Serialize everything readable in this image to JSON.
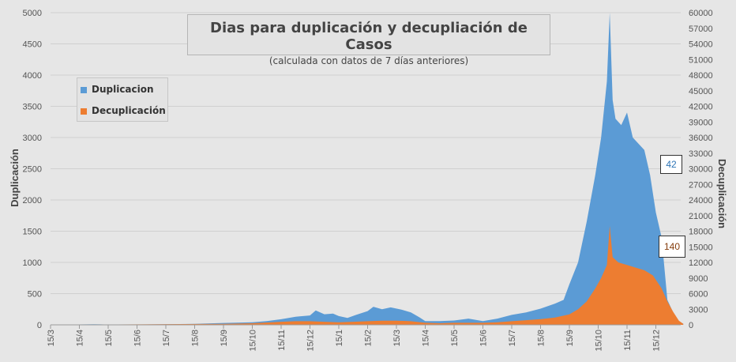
{
  "chart_data": {
    "type": "area",
    "title": "Dias para duplicación y decupliación de Casos",
    "subtitle": "(calculada con datos de 7 días anteriores)",
    "ylabel": "Duplicación",
    "y2label": "Decuplicación",
    "ylim": [
      0,
      5000
    ],
    "y2lim": [
      0,
      60000
    ],
    "yticks": [
      0,
      500,
      1000,
      1500,
      2000,
      2500,
      3000,
      3500,
      4000,
      4500,
      5000
    ],
    "y2ticks": [
      0,
      3000,
      6000,
      9000,
      12000,
      15000,
      18000,
      21000,
      24000,
      27000,
      30000,
      33000,
      36000,
      39000,
      42000,
      45000,
      48000,
      51000,
      54000,
      57000,
      60000
    ],
    "x_tick_labels": [
      "15/3",
      "15/4",
      "15/5",
      "15/6",
      "15/7",
      "15/8",
      "15/9",
      "15/10",
      "15/11",
      "15/12",
      "15/1",
      "15/2",
      "15/3",
      "15/4",
      "15/5",
      "15/6",
      "15/7",
      "15/8",
      "15/9",
      "15/10",
      "15/11",
      "15/12"
    ],
    "x_unit": "months since 15/3 (tick index)",
    "series": [
      {
        "name": "Duplicacion",
        "axis": "left",
        "color": "#5b9bd5",
        "points": [
          [
            0.0,
            0
          ],
          [
            0.7,
            5
          ],
          [
            1.5,
            10
          ],
          [
            2.0,
            5
          ],
          [
            3.0,
            5
          ],
          [
            4.0,
            10
          ],
          [
            5.0,
            15
          ],
          [
            6.0,
            30
          ],
          [
            7.0,
            40
          ],
          [
            7.5,
            60
          ],
          [
            8.0,
            90
          ],
          [
            8.5,
            130
          ],
          [
            9.0,
            150
          ],
          [
            9.2,
            230
          ],
          [
            9.5,
            170
          ],
          [
            9.8,
            180
          ],
          [
            10.0,
            140
          ],
          [
            10.3,
            110
          ],
          [
            10.6,
            160
          ],
          [
            11.0,
            220
          ],
          [
            11.2,
            290
          ],
          [
            11.5,
            250
          ],
          [
            11.8,
            280
          ],
          [
            12.2,
            240
          ],
          [
            12.5,
            200
          ],
          [
            12.8,
            120
          ],
          [
            13.0,
            60
          ],
          [
            13.5,
            60
          ],
          [
            14.0,
            70
          ],
          [
            14.5,
            100
          ],
          [
            15.0,
            60
          ],
          [
            15.5,
            100
          ],
          [
            16.0,
            160
          ],
          [
            16.5,
            200
          ],
          [
            17.0,
            260
          ],
          [
            17.5,
            340
          ],
          [
            17.8,
            400
          ],
          [
            18.0,
            650
          ],
          [
            18.3,
            1000
          ],
          [
            18.6,
            1650
          ],
          [
            18.9,
            2400
          ],
          [
            19.1,
            3000
          ],
          [
            19.3,
            3900
          ],
          [
            19.4,
            5000
          ],
          [
            19.5,
            3600
          ],
          [
            19.6,
            3300
          ],
          [
            19.8,
            3200
          ],
          [
            20.0,
            3400
          ],
          [
            20.2,
            3000
          ],
          [
            20.4,
            2900
          ],
          [
            20.6,
            2800
          ],
          [
            20.8,
            2400
          ],
          [
            21.0,
            1800
          ],
          [
            21.2,
            1400
          ],
          [
            21.4,
            400
          ],
          [
            21.6,
            200
          ],
          [
            21.8,
            50
          ],
          [
            21.95,
            20
          ]
        ]
      },
      {
        "name": "Decuplicación",
        "axis": "right",
        "color": "#ed7d31",
        "points": [
          [
            0.0,
            0
          ],
          [
            6.0,
            200
          ],
          [
            7.0,
            300
          ],
          [
            8.0,
            600
          ],
          [
            8.5,
            700
          ],
          [
            9.0,
            700
          ],
          [
            9.5,
            600
          ],
          [
            10.0,
            500
          ],
          [
            10.5,
            600
          ],
          [
            11.0,
            700
          ],
          [
            11.5,
            800
          ],
          [
            12.0,
            800
          ],
          [
            12.5,
            700
          ],
          [
            13.0,
            400
          ],
          [
            13.5,
            300
          ],
          [
            14.0,
            400
          ],
          [
            14.5,
            400
          ],
          [
            15.0,
            400
          ],
          [
            15.5,
            500
          ],
          [
            16.0,
            700
          ],
          [
            16.5,
            900
          ],
          [
            17.0,
            1100
          ],
          [
            17.5,
            1400
          ],
          [
            18.0,
            2000
          ],
          [
            18.3,
            3000
          ],
          [
            18.6,
            4500
          ],
          [
            18.9,
            7000
          ],
          [
            19.1,
            9000
          ],
          [
            19.3,
            11500
          ],
          [
            19.4,
            19000
          ],
          [
            19.5,
            13000
          ],
          [
            19.7,
            12000
          ],
          [
            20.0,
            11500
          ],
          [
            20.3,
            11000
          ],
          [
            20.6,
            10500
          ],
          [
            20.9,
            9500
          ],
          [
            21.2,
            7000
          ],
          [
            21.4,
            4500
          ],
          [
            21.6,
            2500
          ],
          [
            21.8,
            800
          ],
          [
            21.95,
            200
          ]
        ]
      }
    ],
    "annotations": [
      {
        "text": "42",
        "series": "Duplicacion"
      },
      {
        "text": "140",
        "series": "Decuplicación"
      }
    ],
    "grid": "y-major",
    "legend": "top-left"
  }
}
